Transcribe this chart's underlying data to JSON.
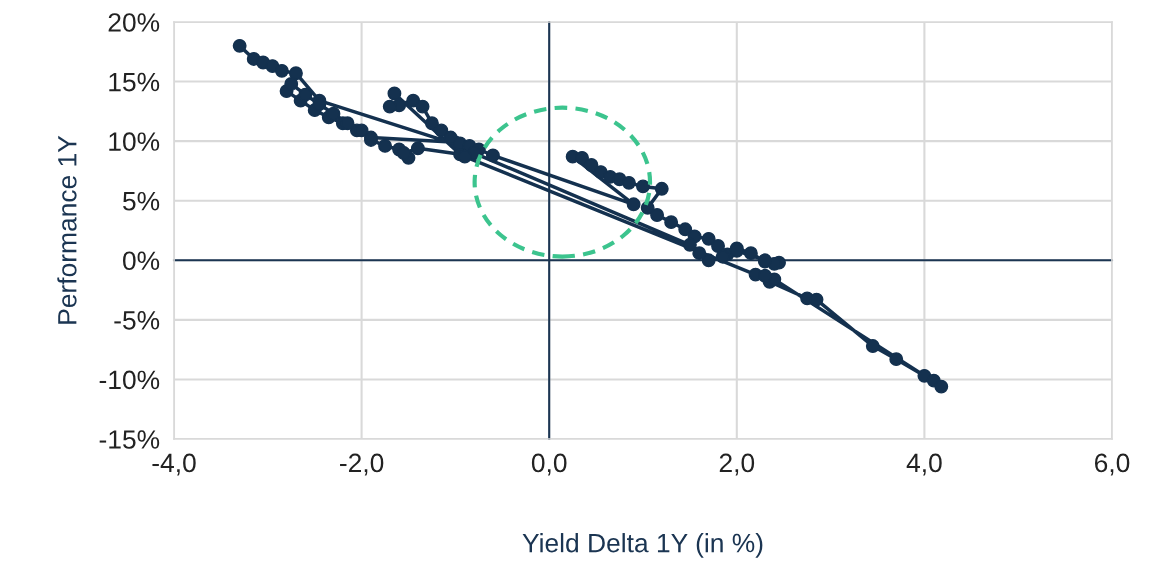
{
  "chart_data": {
    "type": "line",
    "xlabel": "Yield Delta 1Y (in %)",
    "ylabel": "Performance 1Y",
    "marker": "circle",
    "line_style": "solid",
    "grid": true,
    "legend": false,
    "xlim": [
      -4,
      6
    ],
    "ylim": [
      -15,
      20
    ],
    "xticks": [
      {
        "value": -4,
        "label": "-4,0"
      },
      {
        "value": -2,
        "label": "-2,0"
      },
      {
        "value": 0,
        "label": "0,0"
      },
      {
        "value": 2,
        "label": "2,0"
      },
      {
        "value": 4,
        "label": "4,0"
      },
      {
        "value": 6,
        "label": "6,0"
      }
    ],
    "yticks": [
      {
        "value": -15,
        "label": "-15%"
      },
      {
        "value": -10,
        "label": "-10%"
      },
      {
        "value": -5,
        "label": "-5%"
      },
      {
        "value": 0,
        "label": "0%"
      },
      {
        "value": 5,
        "label": "5%"
      },
      {
        "value": 10,
        "label": "10%"
      },
      {
        "value": 15,
        "label": "15%"
      },
      {
        "value": 20,
        "label": "20%"
      }
    ],
    "series": [
      {
        "color": "#14314f",
        "x": [
          -3.3,
          -3.15,
          -3.05,
          -2.95,
          -2.85,
          -2.7,
          -2.45,
          -0.9,
          -1.0,
          -1.9,
          -2.05,
          -2.2,
          -2.35,
          -2.5,
          -2.65,
          -2.8,
          -2.75,
          -2.6,
          -2.45,
          -2.3,
          -2.15,
          -2.0,
          -1.9,
          -1.75,
          -1.6,
          -1.5,
          -1.55,
          -1.4,
          -0.95,
          -1.65,
          -1.6,
          -1.7,
          -1.45,
          -1.35,
          -1.25,
          -1.15,
          -1.05,
          -0.95,
          -0.85,
          -0.75,
          -0.6,
          0.9,
          0.25,
          0.35,
          0.45,
          0.55,
          0.65,
          0.75,
          0.85,
          1.0,
          1.2,
          1.05,
          1.15,
          1.3,
          1.45,
          1.55,
          1.7,
          1.8,
          1.9,
          2.0,
          2.15,
          2.3,
          2.45,
          2.4,
          2.3,
          2.0,
          1.85,
          1.7,
          1.6,
          1.5,
          -0.8,
          -0.9,
          2.2,
          2.35,
          2.75,
          2.85,
          3.45,
          3.7,
          4.0,
          4.1,
          4.18,
          2.4,
          2.3
        ],
        "values": [
          18.0,
          16.9,
          16.6,
          16.3,
          15.9,
          15.7,
          13.4,
          9.5,
          9.9,
          10.3,
          10.9,
          11.5,
          12.0,
          12.6,
          13.4,
          14.2,
          14.8,
          13.9,
          13.1,
          12.3,
          11.5,
          10.9,
          10.1,
          9.6,
          9.3,
          8.6,
          9.0,
          9.4,
          8.9,
          14.0,
          13.0,
          12.9,
          13.4,
          12.9,
          11.5,
          10.9,
          10.3,
          9.8,
          9.6,
          9.3,
          8.8,
          4.7,
          8.7,
          8.6,
          8.0,
          7.4,
          7.0,
          6.8,
          6.5,
          6.2,
          6.0,
          4.4,
          3.8,
          3.2,
          2.6,
          2.0,
          1.8,
          1.2,
          0.5,
          1.0,
          0.6,
          -0.1,
          -0.2,
          -0.3,
          0.0,
          0.8,
          0.3,
          0.0,
          0.6,
          1.3,
          9.0,
          8.7,
          -1.2,
          -1.8,
          -3.2,
          -3.3,
          -7.2,
          -8.3,
          -9.7,
          -10.1,
          -10.6,
          -1.6,
          -1.3
        ]
      }
    ]
  }
}
